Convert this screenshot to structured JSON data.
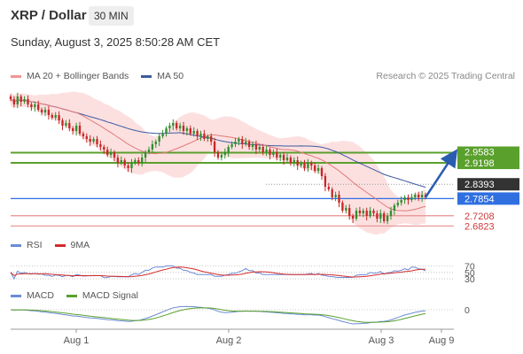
{
  "header": {
    "title": "XRP / Dollar",
    "timeframe": "30 MIN",
    "datetime": "Sunday, August 3, 2025 8:50:28 AM CET"
  },
  "legends": {
    "price": [
      {
        "label": "MA 20 + Bollinger Bands",
        "color": "#f29494"
      },
      {
        "label": "MA 50",
        "color": "#3b5aa0"
      }
    ],
    "rsi": [
      {
        "label": "RSI",
        "color": "#6b8bd6"
      },
      {
        "label": "9MA",
        "color": "#d42a2a"
      }
    ],
    "macd": [
      {
        "label": "MACD",
        "color": "#6b8bd6"
      },
      {
        "label": "MACD Signal",
        "color": "#5aa02c"
      }
    ]
  },
  "credit": "Research © 2025 Trading Central",
  "colors": {
    "resistance": "#5aa02c",
    "pivot": "#2f6fe0",
    "support": "#e88f8f",
    "current": "#333333",
    "bull": "#2f8f2f",
    "bear": "#c62828",
    "band_fill": "#fbd5d5",
    "arrow": "#2a5db0"
  },
  "chart_data": [
    {
      "type": "candlestick",
      "x_ticks": [
        "Aug 1",
        "Aug 2",
        "Aug 3",
        "Aug 9"
      ],
      "ylim": [
        2.66,
        3.2
      ],
      "close": [
        3.16,
        3.14,
        3.17,
        3.15,
        3.16,
        3.14,
        3.13,
        3.14,
        3.12,
        3.11,
        3.12,
        3.1,
        3.09,
        3.1,
        3.08,
        3.06,
        3.07,
        3.05,
        3.04,
        3.06,
        3.03,
        3.02,
        3.01,
        3.0,
        3.01,
        2.99,
        2.98,
        2.97,
        2.95,
        2.96,
        2.94,
        2.92,
        2.93,
        2.91,
        2.9,
        2.92,
        2.93,
        2.92,
        2.94,
        2.96,
        2.97,
        2.99,
        3.0,
        3.02,
        3.03,
        3.05,
        3.06,
        3.07,
        3.05,
        3.06,
        3.04,
        3.05,
        3.03,
        3.04,
        3.02,
        3.03,
        3.01,
        3.02,
        3.0,
        2.96,
        2.94,
        2.95,
        2.96,
        2.98,
        2.99,
        3.0,
        3.01,
        2.99,
        3.0,
        2.98,
        2.99,
        2.97,
        2.98,
        2.96,
        2.97,
        2.95,
        2.96,
        2.94,
        2.95,
        2.93,
        2.94,
        2.92,
        2.93,
        2.91,
        2.92,
        2.9,
        2.92,
        2.91,
        2.89,
        2.9,
        2.87,
        2.83,
        2.82,
        2.79,
        2.8,
        2.77,
        2.74,
        2.75,
        2.72,
        2.71,
        2.74,
        2.73,
        2.74,
        2.72,
        2.74,
        2.73,
        2.71,
        2.73,
        2.7,
        2.72,
        2.74,
        2.76,
        2.77,
        2.78,
        2.79,
        2.78,
        2.79,
        2.8,
        2.79,
        2.8,
        2.79
      ],
      "levels": [
        {
          "value": "2.9583",
          "type": "resistance"
        },
        {
          "value": "2.9198",
          "type": "resistance"
        },
        {
          "value": "2.8393",
          "type": "current"
        },
        {
          "value": "2.7854",
          "type": "pivot"
        },
        {
          "value": "2.7208",
          "type": "support"
        },
        {
          "value": "2.6823",
          "type": "support"
        }
      ]
    },
    {
      "type": "line",
      "ylim": [
        0,
        100
      ],
      "y_ticks": [
        "70",
        "50",
        "30"
      ]
    },
    {
      "type": "line",
      "y_ticks": [
        "0"
      ]
    }
  ]
}
